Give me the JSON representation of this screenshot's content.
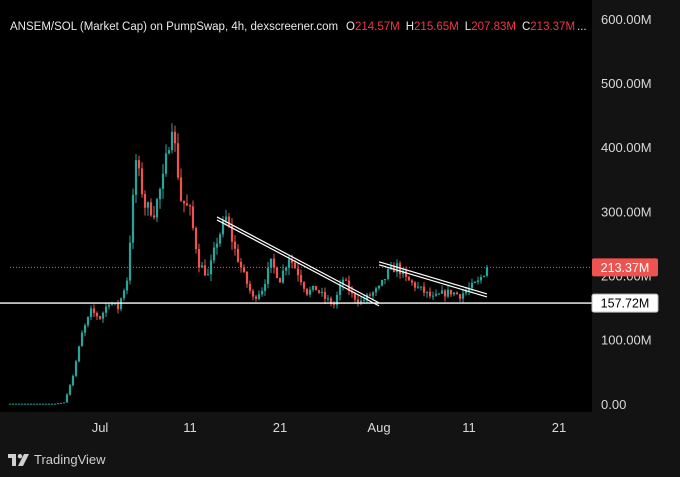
{
  "header": {
    "title": "ANSEM/SOL (Market Cap) on PumpSwap, 4h, dexscreener.com",
    "ohlc": [
      {
        "key": "O",
        "value": "214.57M"
      },
      {
        "key": "H",
        "value": "215.65M"
      },
      {
        "key": "L",
        "value": "207.83M"
      },
      {
        "key": "C",
        "value": "213.37M"
      }
    ],
    "ellipsis": "..."
  },
  "branding": {
    "name": "TradingView"
  },
  "colors": {
    "background": "#131313",
    "up": "#26a69a",
    "down": "#ef5350",
    "current_price_line": "#ef5350",
    "support_line": "#ffffff",
    "trendline": "#ffffff"
  },
  "chart_data": {
    "type": "candlestick",
    "x_axis": {
      "ticks": [
        "Jul",
        "11",
        "21",
        "Aug",
        "11",
        "21"
      ],
      "range": [
        "2025-06-21",
        "2025-08-24"
      ]
    },
    "y_axis": {
      "position": "right",
      "ticks": [
        "0.00",
        "100.00M",
        "200.00M",
        "300.00M",
        "400.00M",
        "500.00M",
        "600.00M"
      ],
      "tick_values": [
        0,
        100,
        200,
        300,
        400,
        500,
        600
      ],
      "range": [
        -12,
        630
      ],
      "unit": "M"
    },
    "current_price": {
      "label": "213.37M",
      "value": 213.37,
      "style": "dotted",
      "color": "#ef5350"
    },
    "support_level": {
      "label": "157.72M",
      "value": 157.72,
      "style": "solid",
      "color": "#ffffff"
    },
    "trendlines": [
      {
        "from": [
          "2025-07-14",
          292
        ],
        "to": [
          "2025-08-01",
          158
        ]
      },
      {
        "from": [
          "2025-08-01",
          222
        ],
        "to": [
          "2025-08-13",
          172
        ]
      }
    ],
    "price_path": [
      [
        "2025-06-21",
        1
      ],
      [
        "2025-06-26",
        1
      ],
      [
        "2025-06-27",
        3
      ],
      [
        "2025-06-28",
        45
      ],
      [
        "2025-06-29",
        110
      ],
      [
        "2025-06-30",
        145
      ],
      [
        "2025-07-01",
        135
      ],
      [
        "2025-07-02",
        160
      ],
      [
        "2025-07-03",
        150
      ],
      [
        "2025-07-04",
        195
      ],
      [
        "2025-07-05",
        380
      ],
      [
        "2025-07-06",
        310
      ],
      [
        "2025-07-07",
        300
      ],
      [
        "2025-07-08",
        350
      ],
      [
        "2025-07-09",
        440
      ],
      [
        "2025-07-10",
        320
      ],
      [
        "2025-07-11",
        300
      ],
      [
        "2025-07-12",
        220
      ],
      [
        "2025-07-13",
        200
      ],
      [
        "2025-07-14",
        255
      ],
      [
        "2025-07-15",
        290
      ],
      [
        "2025-07-16",
        240
      ],
      [
        "2025-07-17",
        200
      ],
      [
        "2025-07-18",
        165
      ],
      [
        "2025-07-19",
        180
      ],
      [
        "2025-07-20",
        220
      ],
      [
        "2025-07-21",
        195
      ],
      [
        "2025-07-22",
        230
      ],
      [
        "2025-07-23",
        205
      ],
      [
        "2025-07-24",
        175
      ],
      [
        "2025-07-25",
        180
      ],
      [
        "2025-07-26",
        165
      ],
      [
        "2025-07-27",
        155
      ],
      [
        "2025-07-28",
        195
      ],
      [
        "2025-07-29",
        170
      ],
      [
        "2025-07-30",
        160
      ],
      [
        "2025-07-31",
        170
      ],
      [
        "2025-08-01",
        180
      ],
      [
        "2025-08-02",
        205
      ],
      [
        "2025-08-03",
        215
      ],
      [
        "2025-08-04",
        195
      ],
      [
        "2025-08-05",
        185
      ],
      [
        "2025-08-06",
        175
      ],
      [
        "2025-08-07",
        165
      ],
      [
        "2025-08-08",
        172
      ],
      [
        "2025-08-09",
        175
      ],
      [
        "2025-08-10",
        170
      ],
      [
        "2025-08-11",
        180
      ],
      [
        "2025-08-12",
        190
      ],
      [
        "2025-08-13",
        213.37
      ]
    ]
  }
}
